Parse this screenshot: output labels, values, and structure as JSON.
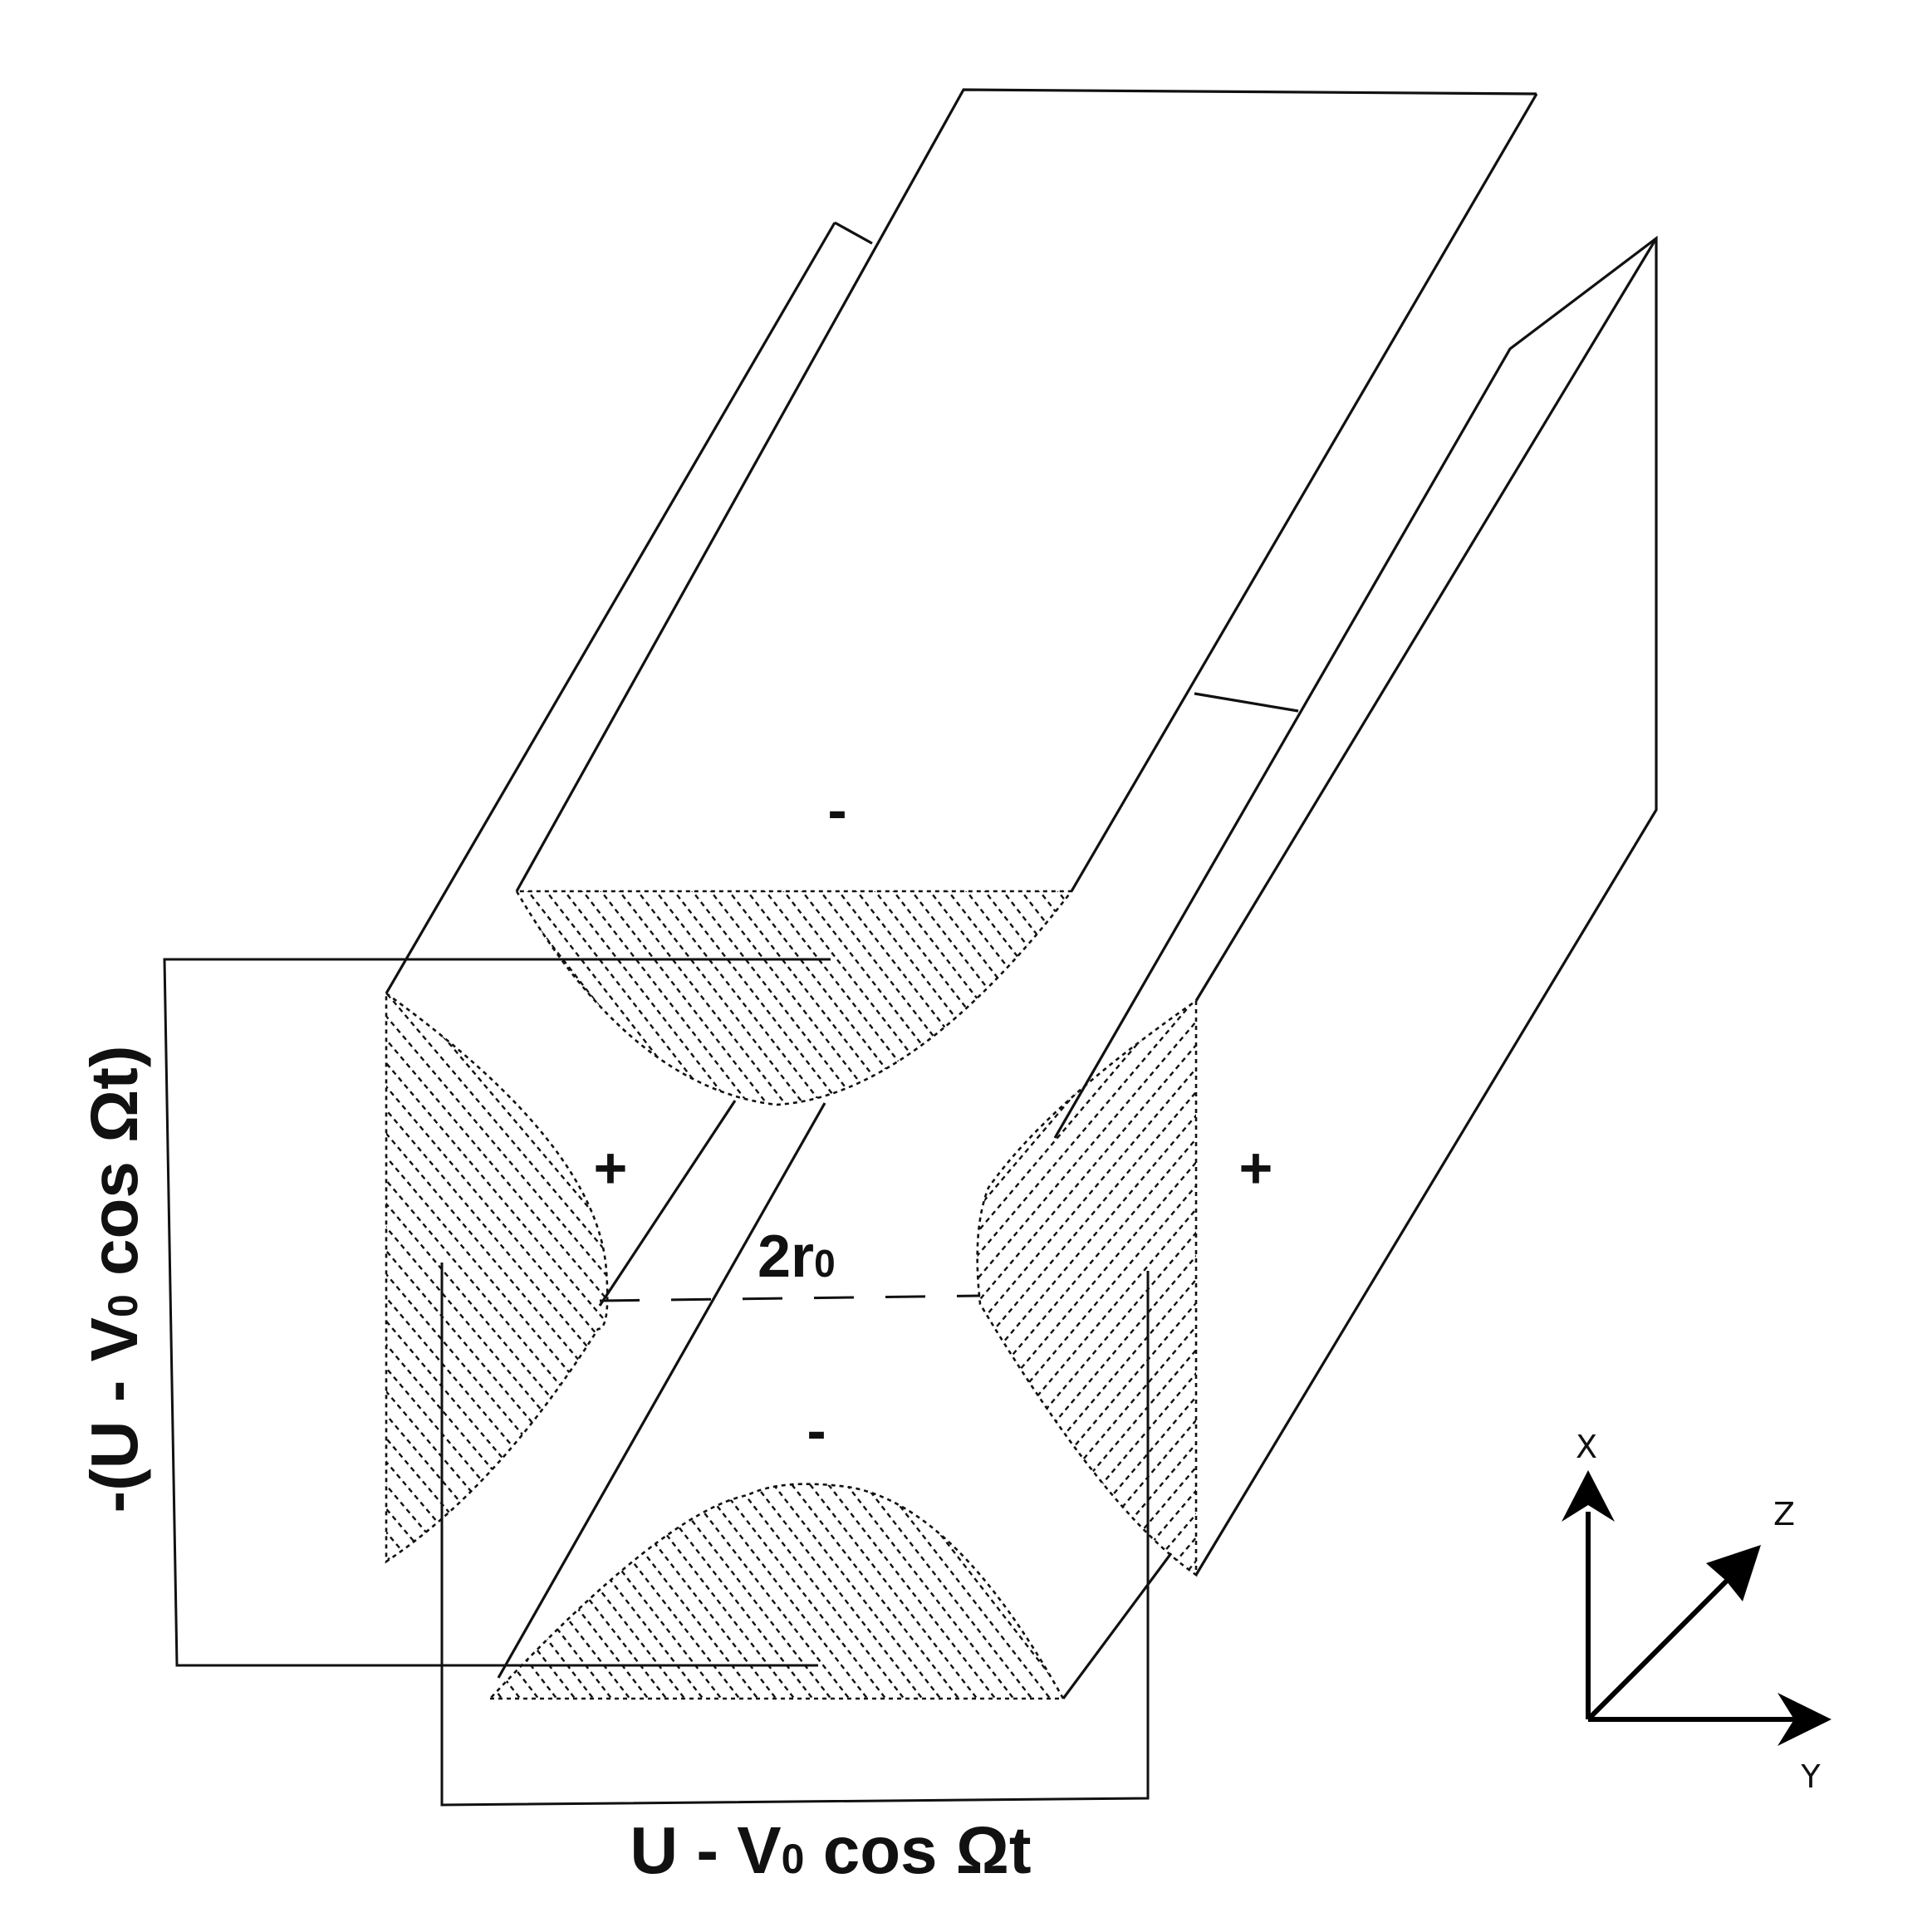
{
  "labels": {
    "minus_top": "-",
    "minus_bottom": "-",
    "plus_left": "+",
    "plus_right": "+",
    "gap": "2r",
    "gap_subscript": "0",
    "bottom_voltage": {
      "pre": "U - V",
      "sub": "0",
      "post": " cos Ωt"
    },
    "left_voltage": {
      "pre": "-(U - V",
      "sub": "0",
      "post": " cos Ωt)"
    }
  },
  "axes": {
    "x": "X",
    "y": "Y",
    "z": "Z"
  }
}
